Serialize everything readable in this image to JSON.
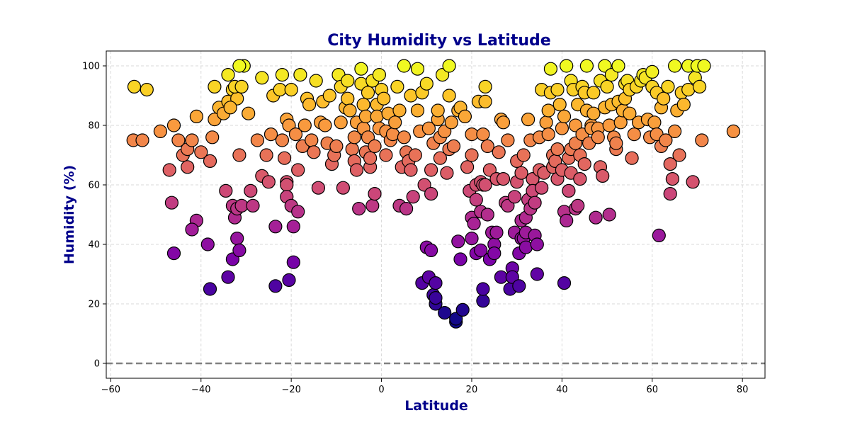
{
  "chart_data": {
    "type": "scatter",
    "title": "City Humidity vs Latitude",
    "xlabel": "Latitude",
    "ylabel": "Humidity (%)",
    "xlim": [
      -61,
      85
    ],
    "ylim": [
      -5,
      105
    ],
    "x_ticks": [
      -60,
      -40,
      -20,
      0,
      20,
      40,
      60,
      80
    ],
    "y_ticks": [
      0,
      20,
      40,
      60,
      80,
      100
    ],
    "grid": true,
    "reference_line": {
      "y": 0,
      "style": "dashed",
      "color": "#808080"
    },
    "colormap": "plasma",
    "color_by": "y",
    "marker_edge_color": "#000000",
    "title_color": "#00008b",
    "points": [
      [
        -54.8,
        93
      ],
      [
        -52,
        92
      ],
      [
        -55,
        75
      ],
      [
        -53,
        75
      ],
      [
        -49,
        78
      ],
      [
        -46,
        80
      ],
      [
        -45,
        75
      ],
      [
        -47,
        65
      ],
      [
        -46.5,
        54
      ],
      [
        -46,
        37
      ],
      [
        -44,
        70
      ],
      [
        -43,
        72
      ],
      [
        -43,
        66
      ],
      [
        -42,
        75
      ],
      [
        -41,
        83
      ],
      [
        -40,
        71
      ],
      [
        -41,
        48
      ],
      [
        -42,
        45
      ],
      [
        -38.5,
        40
      ],
      [
        -38,
        25
      ],
      [
        -38,
        68
      ],
      [
        -37.5,
        76
      ],
      [
        -37,
        82
      ],
      [
        -37,
        93
      ],
      [
        -36,
        86
      ],
      [
        -35,
        84
      ],
      [
        -34.5,
        58
      ],
      [
        -34,
        88
      ],
      [
        -34,
        97
      ],
      [
        -33,
        92
      ],
      [
        -34,
        29
      ],
      [
        -33,
        53
      ],
      [
        -33,
        35
      ],
      [
        -32.5,
        49
      ],
      [
        -32,
        42
      ],
      [
        -32,
        52
      ],
      [
        -31.5,
        38
      ],
      [
        -31,
        53
      ],
      [
        -31.5,
        70
      ],
      [
        -32,
        89
      ],
      [
        -30.5,
        100
      ],
      [
        -31.5,
        100
      ],
      [
        -33.5,
        86
      ],
      [
        -32.5,
        93
      ],
      [
        -31,
        93
      ],
      [
        -29.5,
        84
      ],
      [
        -29,
        58
      ],
      [
        -28.5,
        53
      ],
      [
        -27.5,
        75
      ],
      [
        -26.5,
        96
      ],
      [
        -26.5,
        63
      ],
      [
        -25.5,
        70
      ],
      [
        -25,
        61
      ],
      [
        -24.5,
        77
      ],
      [
        -24,
        90
      ],
      [
        -23.5,
        46
      ],
      [
        -23.5,
        26
      ],
      [
        -22.5,
        92
      ],
      [
        -22,
        75
      ],
      [
        -22,
        97
      ],
      [
        -21.5,
        69
      ],
      [
        -21,
        61
      ],
      [
        -21,
        60
      ],
      [
        -21,
        56
      ],
      [
        -21,
        82
      ],
      [
        -20.5,
        80
      ],
      [
        -20,
        53
      ],
      [
        -20.5,
        28
      ],
      [
        -20,
        92
      ],
      [
        -19.5,
        46
      ],
      [
        -19.5,
        34
      ],
      [
        -19,
        77
      ],
      [
        -18.5,
        51
      ],
      [
        -18.5,
        65
      ],
      [
        -18,
        97
      ],
      [
        -17.5,
        73
      ],
      [
        -17,
        80
      ],
      [
        -16.5,
        89
      ],
      [
        -16,
        87
      ],
      [
        -15.5,
        75
      ],
      [
        -15,
        71
      ],
      [
        -14.5,
        95
      ],
      [
        -14,
        59
      ],
      [
        -13.5,
        81
      ],
      [
        -13,
        88
      ],
      [
        -12.5,
        80
      ],
      [
        -12,
        74
      ],
      [
        -11.5,
        90
      ],
      [
        -11,
        67
      ],
      [
        -10.5,
        70
      ],
      [
        -10,
        73
      ],
      [
        -9.5,
        97
      ],
      [
        -9,
        93
      ],
      [
        -9,
        81
      ],
      [
        -8.5,
        59
      ],
      [
        -8,
        86
      ],
      [
        -7.5,
        95
      ],
      [
        -7.5,
        89
      ],
      [
        -7,
        85
      ],
      [
        -6.5,
        72
      ],
      [
        -6,
        68
      ],
      [
        -6,
        76
      ],
      [
        -5.5,
        81
      ],
      [
        -5.5,
        65
      ],
      [
        -5,
        52
      ],
      [
        -4.5,
        99
      ],
      [
        -4.5,
        94
      ],
      [
        -4,
        87
      ],
      [
        -4,
        79
      ],
      [
        -3.5,
        71
      ],
      [
        -3.5,
        83
      ],
      [
        -3,
        91
      ],
      [
        -3,
        76
      ],
      [
        -2.5,
        66
      ],
      [
        -2.5,
        69
      ],
      [
        -2,
        53
      ],
      [
        -2,
        95
      ],
      [
        -1.5,
        57
      ],
      [
        -1.5,
        73
      ],
      [
        -1,
        87
      ],
      [
        -1,
        83
      ],
      [
        -0.5,
        97
      ],
      [
        -0.5,
        79
      ],
      [
        0,
        92
      ],
      [
        0.5,
        89
      ],
      [
        1,
        70
      ],
      [
        1,
        78
      ],
      [
        1.5,
        84
      ],
      [
        2,
        75
      ],
      [
        2.5,
        77
      ],
      [
        3,
        81
      ],
      [
        3.5,
        93
      ],
      [
        4,
        85
      ],
      [
        4,
        53
      ],
      [
        4.5,
        66
      ],
      [
        5,
        100
      ],
      [
        5,
        76
      ],
      [
        5.5,
        52
      ],
      [
        5.5,
        71
      ],
      [
        6,
        68
      ],
      [
        6.5,
        90
      ],
      [
        6.5,
        65
      ],
      [
        7,
        56
      ],
      [
        7.5,
        70
      ],
      [
        8,
        85
      ],
      [
        8,
        99
      ],
      [
        8.5,
        78
      ],
      [
        9,
        91
      ],
      [
        9,
        27
      ],
      [
        9.5,
        60
      ],
      [
        10,
        94
      ],
      [
        10,
        39
      ],
      [
        10.5,
        79
      ],
      [
        10.5,
        29
      ],
      [
        11,
        65
      ],
      [
        11,
        38
      ],
      [
        11,
        57
      ],
      [
        11.5,
        74
      ],
      [
        11.5,
        23
      ],
      [
        12,
        20
      ],
      [
        12,
        22
      ],
      [
        12,
        27
      ],
      [
        12.5,
        82
      ],
      [
        12.5,
        85
      ],
      [
        13,
        76
      ],
      [
        13,
        69
      ],
      [
        13.5,
        97
      ],
      [
        14,
        17
      ],
      [
        14,
        78
      ],
      [
        14.5,
        64
      ],
      [
        15,
        72
      ],
      [
        15,
        90
      ],
      [
        15,
        100
      ],
      [
        15.5,
        81
      ],
      [
        16,
        73
      ],
      [
        16.5,
        14
      ],
      [
        16.5,
        15
      ],
      [
        17,
        41
      ],
      [
        17,
        85
      ],
      [
        17.5,
        86
      ],
      [
        17.5,
        35
      ],
      [
        18,
        18
      ],
      [
        18.5,
        83
      ],
      [
        19,
        66
      ],
      [
        19.5,
        58
      ],
      [
        20,
        77
      ],
      [
        20,
        70
      ],
      [
        20,
        49
      ],
      [
        20,
        42
      ],
      [
        20.5,
        47
      ],
      [
        21,
        37
      ],
      [
        21,
        60
      ],
      [
        21,
        55
      ],
      [
        21.5,
        88
      ],
      [
        22,
        61
      ],
      [
        22,
        38
      ],
      [
        22,
        51
      ],
      [
        22.5,
        77
      ],
      [
        22.5,
        60
      ],
      [
        22.5,
        21
      ],
      [
        22.5,
        25
      ],
      [
        23,
        93
      ],
      [
        23,
        88
      ],
      [
        23,
        60
      ],
      [
        23.5,
        73
      ],
      [
        23.5,
        50
      ],
      [
        24,
        35
      ],
      [
        24,
        65
      ],
      [
        24.5,
        44
      ],
      [
        25,
        40
      ],
      [
        25,
        37
      ],
      [
        25.5,
        62
      ],
      [
        25.5,
        44
      ],
      [
        26,
        71
      ],
      [
        26.5,
        82
      ],
      [
        26.5,
        29
      ],
      [
        27,
        62
      ],
      [
        27,
        81
      ],
      [
        27.5,
        54
      ],
      [
        28,
        53
      ],
      [
        28,
        75
      ],
      [
        28.5,
        25
      ],
      [
        29,
        32
      ],
      [
        29,
        29
      ],
      [
        29.5,
        44
      ],
      [
        29.5,
        56
      ],
      [
        30,
        61
      ],
      [
        30,
        68
      ],
      [
        30.5,
        26
      ],
      [
        30.5,
        37
      ],
      [
        31,
        42
      ],
      [
        31,
        48
      ],
      [
        31,
        64
      ],
      [
        31.5,
        70
      ],
      [
        31.5,
        42
      ],
      [
        32,
        44
      ],
      [
        32,
        39
      ],
      [
        32,
        49
      ],
      [
        32.5,
        82
      ],
      [
        32.5,
        55
      ],
      [
        33,
        75
      ],
      [
        33,
        52
      ],
      [
        33.5,
        62
      ],
      [
        33.5,
        58
      ],
      [
        34,
        43
      ],
      [
        34,
        54
      ],
      [
        34.5,
        40
      ],
      [
        34.5,
        30
      ],
      [
        35,
        65
      ],
      [
        35,
        76
      ],
      [
        35.5,
        92
      ],
      [
        35.5,
        59
      ],
      [
        36,
        64
      ],
      [
        36.5,
        81
      ],
      [
        37,
        85
      ],
      [
        37,
        77
      ],
      [
        37.5,
        99
      ],
      [
        37.5,
        91
      ],
      [
        38,
        70
      ],
      [
        38,
        66
      ],
      [
        38.5,
        68
      ],
      [
        39,
        62
      ],
      [
        39,
        92
      ],
      [
        39,
        72
      ],
      [
        39.5,
        87
      ],
      [
        40,
        79
      ],
      [
        40,
        65
      ],
      [
        40.5,
        83
      ],
      [
        40.5,
        27
      ],
      [
        40.5,
        51
      ],
      [
        41,
        100
      ],
      [
        41,
        48
      ],
      [
        41.5,
        69
      ],
      [
        41.5,
        58
      ],
      [
        42,
        95
      ],
      [
        42,
        64
      ],
      [
        42,
        72
      ],
      [
        42.5,
        92
      ],
      [
        43,
        80
      ],
      [
        43,
        74
      ],
      [
        43,
        52
      ],
      [
        43.5,
        87
      ],
      [
        43.5,
        53
      ],
      [
        44,
        62
      ],
      [
        44,
        70
      ],
      [
        44.5,
        93
      ],
      [
        44.5,
        77
      ],
      [
        45,
        91
      ],
      [
        45,
        67
      ],
      [
        45.5,
        100
      ],
      [
        45.5,
        85
      ],
      [
        46,
        74
      ],
      [
        46.5,
        80
      ],
      [
        46.5,
        79
      ],
      [
        47,
        91
      ],
      [
        47,
        84
      ],
      [
        47.5,
        49
      ],
      [
        48,
        79
      ],
      [
        48,
        76
      ],
      [
        48.5,
        95
      ],
      [
        48.5,
        66
      ],
      [
        49,
        63
      ],
      [
        49.5,
        86
      ],
      [
        49.5,
        100
      ],
      [
        50,
        93
      ],
      [
        50.5,
        80
      ],
      [
        50.5,
        50
      ],
      [
        51,
        97
      ],
      [
        51,
        87
      ],
      [
        51.5,
        76
      ],
      [
        52,
        72
      ],
      [
        52,
        74
      ],
      [
        52.5,
        100
      ],
      [
        52.5,
        88
      ],
      [
        53,
        81
      ],
      [
        53.5,
        85
      ],
      [
        54,
        94
      ],
      [
        54,
        89
      ],
      [
        54.5,
        95
      ],
      [
        55,
        84
      ],
      [
        55,
        92
      ],
      [
        55.5,
        69
      ],
      [
        56,
        77
      ],
      [
        56.5,
        93
      ],
      [
        57,
        81
      ],
      [
        57.5,
        95
      ],
      [
        58,
        97
      ],
      [
        58.5,
        96
      ],
      [
        59,
        82
      ],
      [
        59.5,
        76
      ],
      [
        60,
        98
      ],
      [
        60,
        93
      ],
      [
        60.5,
        81
      ],
      [
        61,
        77
      ],
      [
        61,
        91
      ],
      [
        61.5,
        43
      ],
      [
        62,
        73
      ],
      [
        62,
        86
      ],
      [
        62.5,
        89
      ],
      [
        63,
        75
      ],
      [
        63.5,
        93
      ],
      [
        64,
        67
      ],
      [
        64,
        57
      ],
      [
        64.5,
        62
      ],
      [
        65,
        100
      ],
      [
        65,
        78
      ],
      [
        65.5,
        85
      ],
      [
        66,
        70
      ],
      [
        66.5,
        91
      ],
      [
        67,
        87
      ],
      [
        68,
        92
      ],
      [
        68,
        100
      ],
      [
        69,
        61
      ],
      [
        69.5,
        96
      ],
      [
        70,
        100
      ],
      [
        70.5,
        93
      ],
      [
        71,
        75
      ],
      [
        71.5,
        100
      ],
      [
        78,
        78
      ]
    ]
  }
}
